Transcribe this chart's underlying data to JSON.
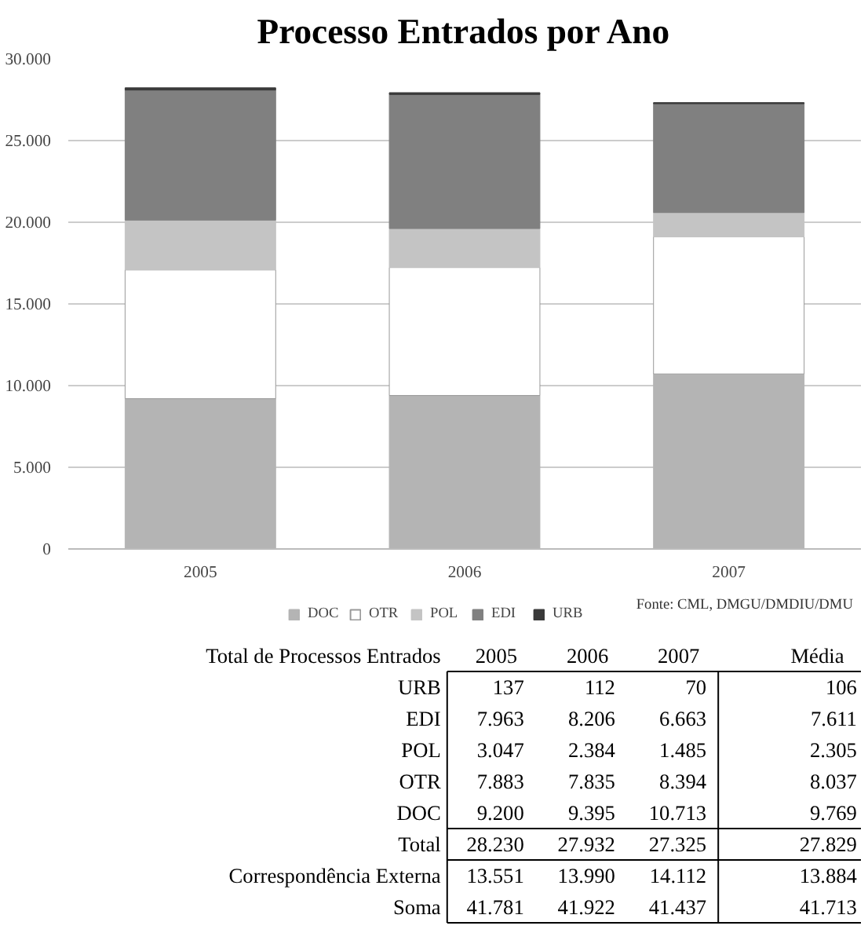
{
  "chart_data": {
    "type": "bar",
    "stacked": true,
    "title": "Processo Entrados por Ano",
    "categories": [
      "2005",
      "2006",
      "2007"
    ],
    "series": [
      {
        "name": "DOC",
        "color": "#b4b4b4",
        "values": [
          9200,
          9395,
          10713
        ]
      },
      {
        "name": "OTR",
        "color": "#ffffff",
        "values": [
          7883,
          7835,
          8394
        ]
      },
      {
        "name": "POL",
        "color": "#c4c4c4",
        "values": [
          3047,
          2384,
          1485
        ]
      },
      {
        "name": "EDI",
        "color": "#808080",
        "values": [
          7963,
          8206,
          6663
        ]
      },
      {
        "name": "URB",
        "color": "#3a3a3a",
        "values": [
          137,
          112,
          70
        ]
      }
    ],
    "ylim": [
      0,
      30000
    ],
    "yticks": [
      0,
      {
        "value": 5000,
        "label": "5.000"
      },
      {
        "value": 10000,
        "label": "10.000"
      },
      {
        "value": 15000,
        "label": "15.000"
      },
      {
        "value": 20000,
        "label": "20.000"
      },
      {
        "value": 25000,
        "label": "25.000"
      },
      {
        "value": 30000,
        "label": "30.000"
      }
    ],
    "grid": "y",
    "legend": "bottom",
    "annotations": [
      "Fonte: CML, DMGU/DMDIU/DMU",
      "Total de Processos Entrados",
      "2005",
      "2006",
      "2007",
      "Média",
      "URB",
      "137",
      "112",
      "70",
      "106",
      "EDI",
      "7.963",
      "8.206",
      "6.663",
      "7.611",
      "POL",
      "3.047",
      "2.384",
      "1.485",
      "2.305",
      "OTR",
      "7.883",
      "7.835",
      "8.394",
      "8.037",
      "DOC",
      "9.200",
      "9.395",
      "10.713",
      "9.769",
      "Total",
      "28.230",
      "27.932",
      "27.325",
      "27.829",
      "Correspondência Externa",
      "13.551",
      "13.990",
      "14.112",
      "13.884",
      "Soma",
      "41.781",
      "41.922",
      "41.437",
      "41.713"
    ]
  }
}
